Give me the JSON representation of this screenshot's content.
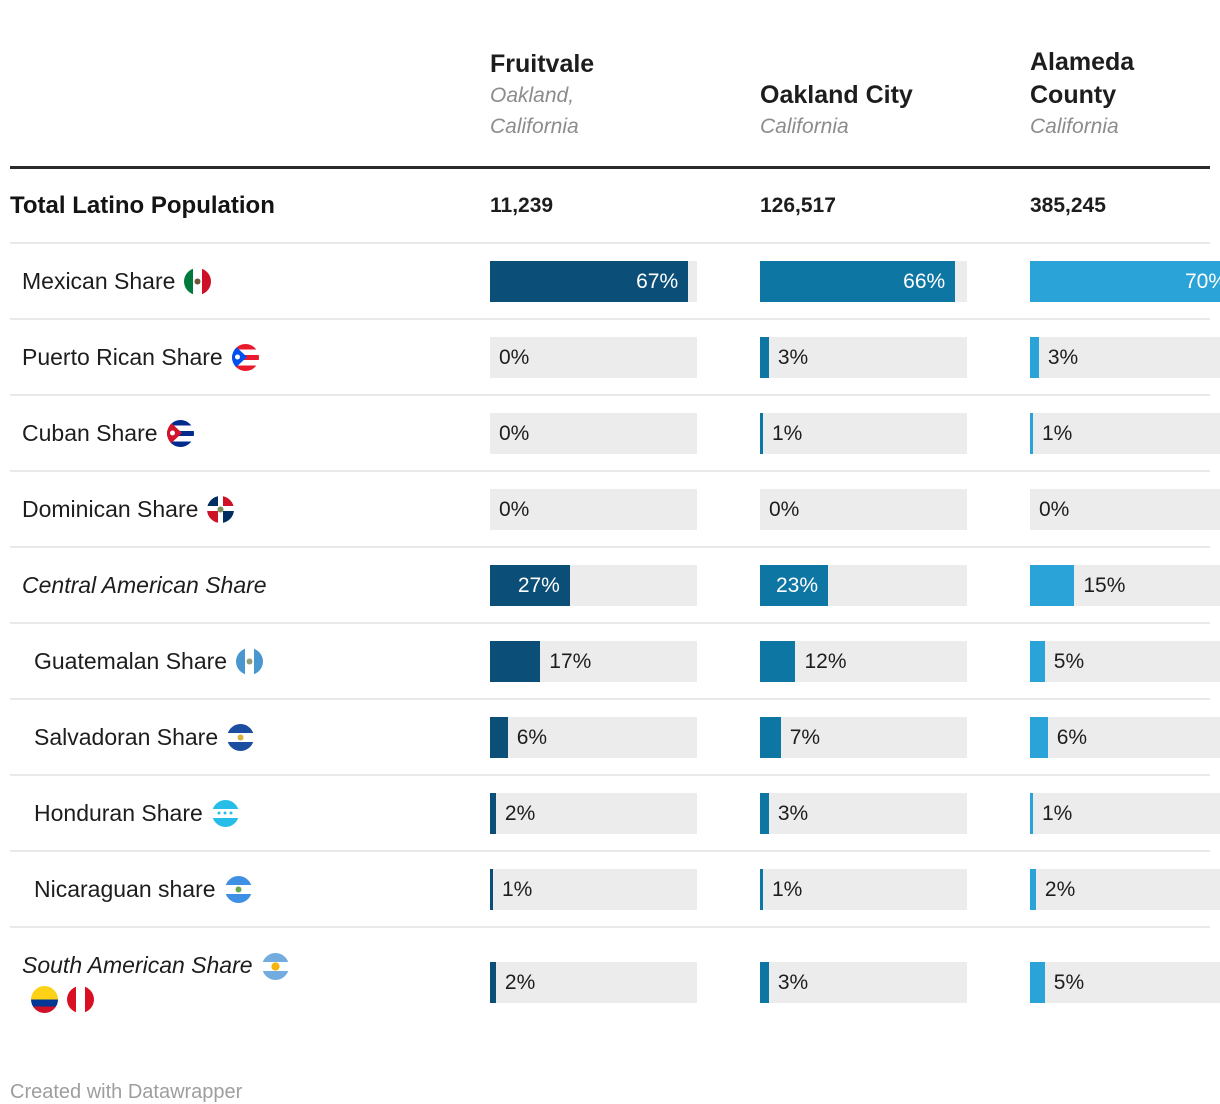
{
  "header": {
    "columns": [
      {
        "name": "Fruitvale",
        "subtitle": "Oakland, California"
      },
      {
        "name": "Oakland City",
        "subtitle": "California"
      },
      {
        "name": "Alameda County",
        "subtitle": "California"
      }
    ]
  },
  "table": {
    "total_row": {
      "label": "Total Latino Population",
      "values": [
        "11,239",
        "126,517",
        "385,245"
      ]
    },
    "rows": [
      {
        "label": "Mexican Share",
        "flags": [
          "mexico"
        ],
        "indent": 1,
        "italic": false
      },
      {
        "label": "Puerto Rican Share",
        "flags": [
          "puerto-rico"
        ],
        "indent": 1,
        "italic": false
      },
      {
        "label": "Cuban Share",
        "flags": [
          "cuba"
        ],
        "indent": 1,
        "italic": false
      },
      {
        "label": "Dominican Share",
        "flags": [
          "dominican-republic"
        ],
        "indent": 1,
        "italic": false
      },
      {
        "label": "Central American Share",
        "flags": [],
        "indent": 1,
        "italic": true
      },
      {
        "label": "Guatemalan Share",
        "flags": [
          "guatemala"
        ],
        "indent": 2,
        "italic": false
      },
      {
        "label": "Salvadoran Share",
        "flags": [
          "el-salvador"
        ],
        "indent": 2,
        "italic": false
      },
      {
        "label": "Honduran Share",
        "flags": [
          "honduras"
        ],
        "indent": 2,
        "italic": false
      },
      {
        "label": "Nicaraguan share",
        "flags": [
          "nicaragua"
        ],
        "indent": 2,
        "italic": false
      },
      {
        "label": "South American Share",
        "flags": [
          "argentina",
          "colombia",
          "peru"
        ],
        "indent": 1,
        "italic": true,
        "wrap": true
      }
    ],
    "value_suffix": "%"
  },
  "chart_data": {
    "type": "bar",
    "categories": [
      "Mexican Share",
      "Puerto Rican Share",
      "Cuban Share",
      "Dominican Share",
      "Central American Share",
      "Guatemalan Share",
      "Salvadoran Share",
      "Honduran Share",
      "Nicaraguan share",
      "South American Share"
    ],
    "series": [
      {
        "name": "Fruitvale",
        "values": [
          67,
          0,
          0,
          0,
          27,
          17,
          6,
          2,
          1,
          2
        ]
      },
      {
        "name": "Oakland City",
        "values": [
          66,
          3,
          1,
          0,
          23,
          12,
          7,
          3,
          1,
          3
        ]
      },
      {
        "name": "Alameda County",
        "values": [
          70,
          3,
          1,
          0,
          15,
          5,
          6,
          1,
          2,
          5
        ]
      }
    ],
    "totals": {
      "label": "Total Latino Population",
      "values": [
        11239,
        126517,
        385245
      ]
    },
    "value_format": "percent",
    "xlim": [
      0,
      70
    ],
    "legend_position": "none",
    "grid": false
  },
  "chart": {
    "scale_max": 70,
    "colors": [
      "#0b4e77",
      "#0e76a3",
      "#2aa3d8"
    ],
    "track_color": "#ececec",
    "label_inside_threshold": 20
  },
  "footer": {
    "credit": "Created with Datawrapper"
  }
}
